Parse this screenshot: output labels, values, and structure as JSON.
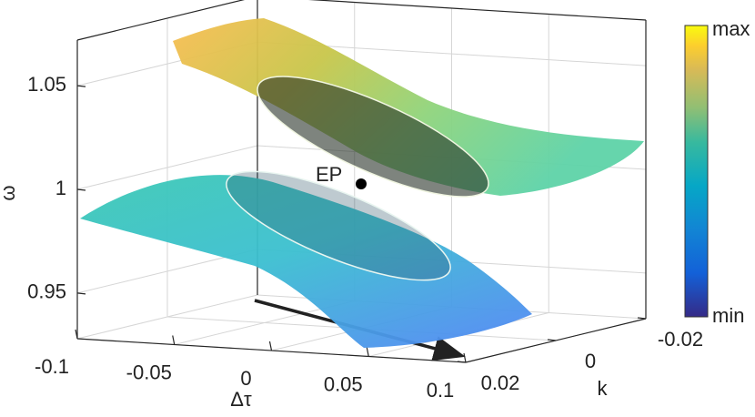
{
  "chart_data": {
    "type": "surface3d",
    "xlabel": "Δτ",
    "ylabel": "k",
    "zlabel": "ω",
    "xlim": [
      -0.1,
      0.1
    ],
    "xticks": [
      -0.1,
      -0.05,
      0,
      0.05,
      0.1
    ],
    "ylim": [
      0.02,
      -0.02
    ],
    "yticks": [
      0.02,
      0,
      -0.02
    ],
    "zlim": [
      0.928,
      1.072
    ],
    "zticks": [
      0.95,
      1,
      1.05
    ],
    "annotation": "EP",
    "colorbar_labels": [
      "max",
      "min"
    ],
    "grid": true
  }
}
